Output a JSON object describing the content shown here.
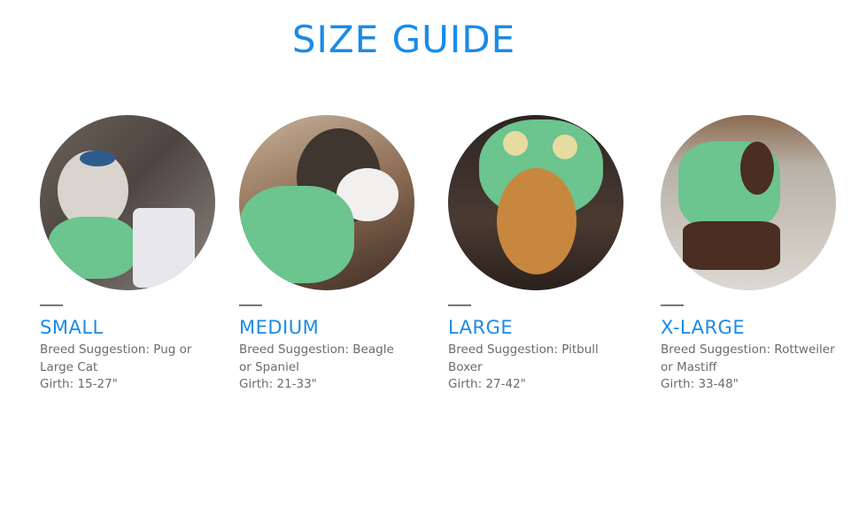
{
  "title": "SIZE GUIDE",
  "sizes": [
    {
      "name": "SMALL",
      "breed": "Breed Suggestion: Pug or Large Cat",
      "girth": "Girth: 15-27\"",
      "photo": "small dog in green hoodie"
    },
    {
      "name": "MEDIUM",
      "breed": "Breed Suggestion: Beagle or Spaniel",
      "girth": "Girth: 21-33\"",
      "photo": "brindle dog in green hoodie"
    },
    {
      "name": "LARGE",
      "breed": "Breed Suggestion: Pitbull Boxer",
      "girth": "Girth: 27-42\"",
      "photo": "golden retriever in green monster hoodie"
    },
    {
      "name": "X-LARGE",
      "breed": "Breed Suggestion: Rottweiler or Mastiff",
      "girth": "Girth: 33-48\"",
      "photo": "chocolate labrador in green hoodie"
    }
  ],
  "colors": {
    "accent": "#1a8be8",
    "text": "#6b6b6b",
    "hoodie": "#6cc48e"
  }
}
